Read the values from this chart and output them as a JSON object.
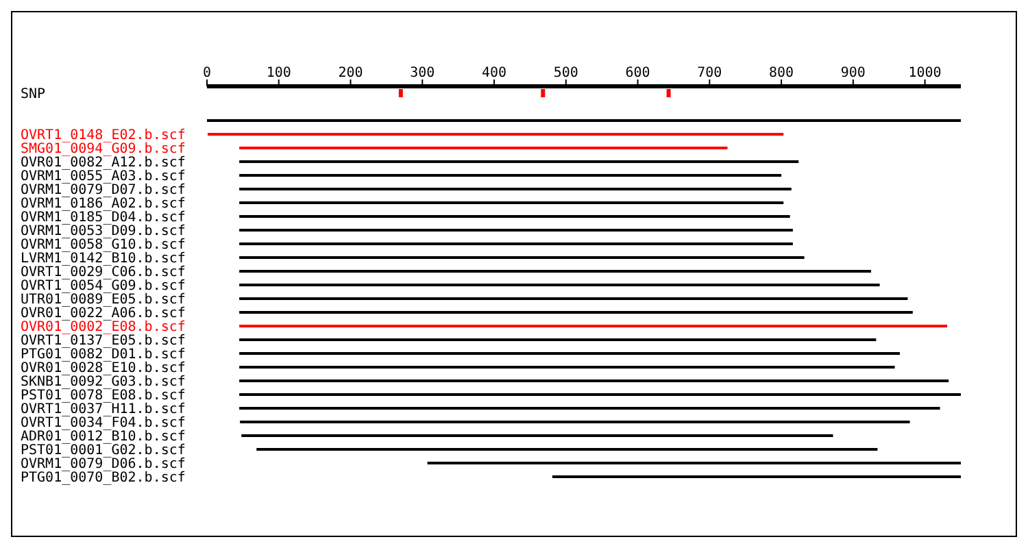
{
  "chart_data": {
    "type": "bar",
    "orientation": "horizontal",
    "categories": [
      "SNP",
      null,
      null,
      "OVRT1_0148_E02.b.scf",
      "SMG01_0094_G09.b.scf",
      "OVR01_0082_A12.b.scf",
      "OVRM1_0055_A03.b.scf",
      "OVRM1_0079_D07.b.scf",
      "OVRM1_0186_A02.b.scf",
      "OVRM1_0185_D04.b.scf",
      "OVRM1_0053_D09.b.scf",
      "OVRM1_0058_G10.b.scf",
      "LVRM1_0142_B10.b.scf",
      "OVRT1_0029_C06.b.scf",
      "OVRT1_0054_G09.b.scf",
      "UTR01_0089_E05.b.scf",
      "OVR01_0022_A06.b.scf",
      "OVR01_0002_E08.b.scf",
      "OVRT1_0137_E05.b.scf",
      "PTG01_0082_D01.b.scf",
      "OVR01_0028_E10.b.scf",
      "SKNB1_0092_G03.b.scf",
      "PST01_0078_E08.b.scf",
      "OVRT1_0037_H11.b.scf",
      "OVRT1_0034_F04.b.scf",
      "ADR01_0012_B10.b.scf",
      "PST01_0001_G02.b.scf",
      "OVRM1_0079_D06.b.scf",
      "PTG01_0070_B02.b.scf"
    ],
    "series": [
      {
        "type": "bar",
        "values": [
          null,
          null,
          1050,
          802,
          680,
          779,
          755,
          769,
          758,
          767,
          771,
          771,
          787,
          880,
          892,
          931,
          938,
          986,
          887,
          920,
          913,
          988,
          1005,
          976,
          933,
          824,
          865,
          743,
          569
        ],
        "base": [
          null,
          null,
          0,
          1,
          45,
          45,
          45,
          45,
          45,
          45,
          45,
          45,
          45,
          45,
          45,
          45,
          45,
          45,
          45,
          45,
          45,
          45,
          45,
          45,
          46,
          48,
          69,
          307,
          481
        ],
        "colors": [
          "#000000",
          "#000000",
          "#000000",
          "#ff0000",
          "#ff0000",
          "#000000",
          "#000000",
          "#000000",
          "#000000",
          "#000000",
          "#000000",
          "#000000",
          "#000000",
          "#000000",
          "#000000",
          "#000000",
          "#000000",
          "#ff0000",
          "#000000",
          "#000000",
          "#000000",
          "#000000",
          "#000000",
          "#000000",
          "#000000",
          "#000000",
          "#000000",
          "#000000",
          "#000000"
        ]
      },
      {
        "type": "scatter",
        "color": "#ff0000",
        "marker": "square",
        "x": [
          "SNP",
          "SNP",
          "SNP"
        ],
        "values": [
          270,
          468,
          643
        ]
      }
    ],
    "xlim": [
      0,
      1050
    ],
    "xticks": [
      0,
      100,
      200,
      300,
      400,
      500,
      600,
      700,
      800,
      900,
      1000
    ],
    "grid": false,
    "legend": false
  }
}
